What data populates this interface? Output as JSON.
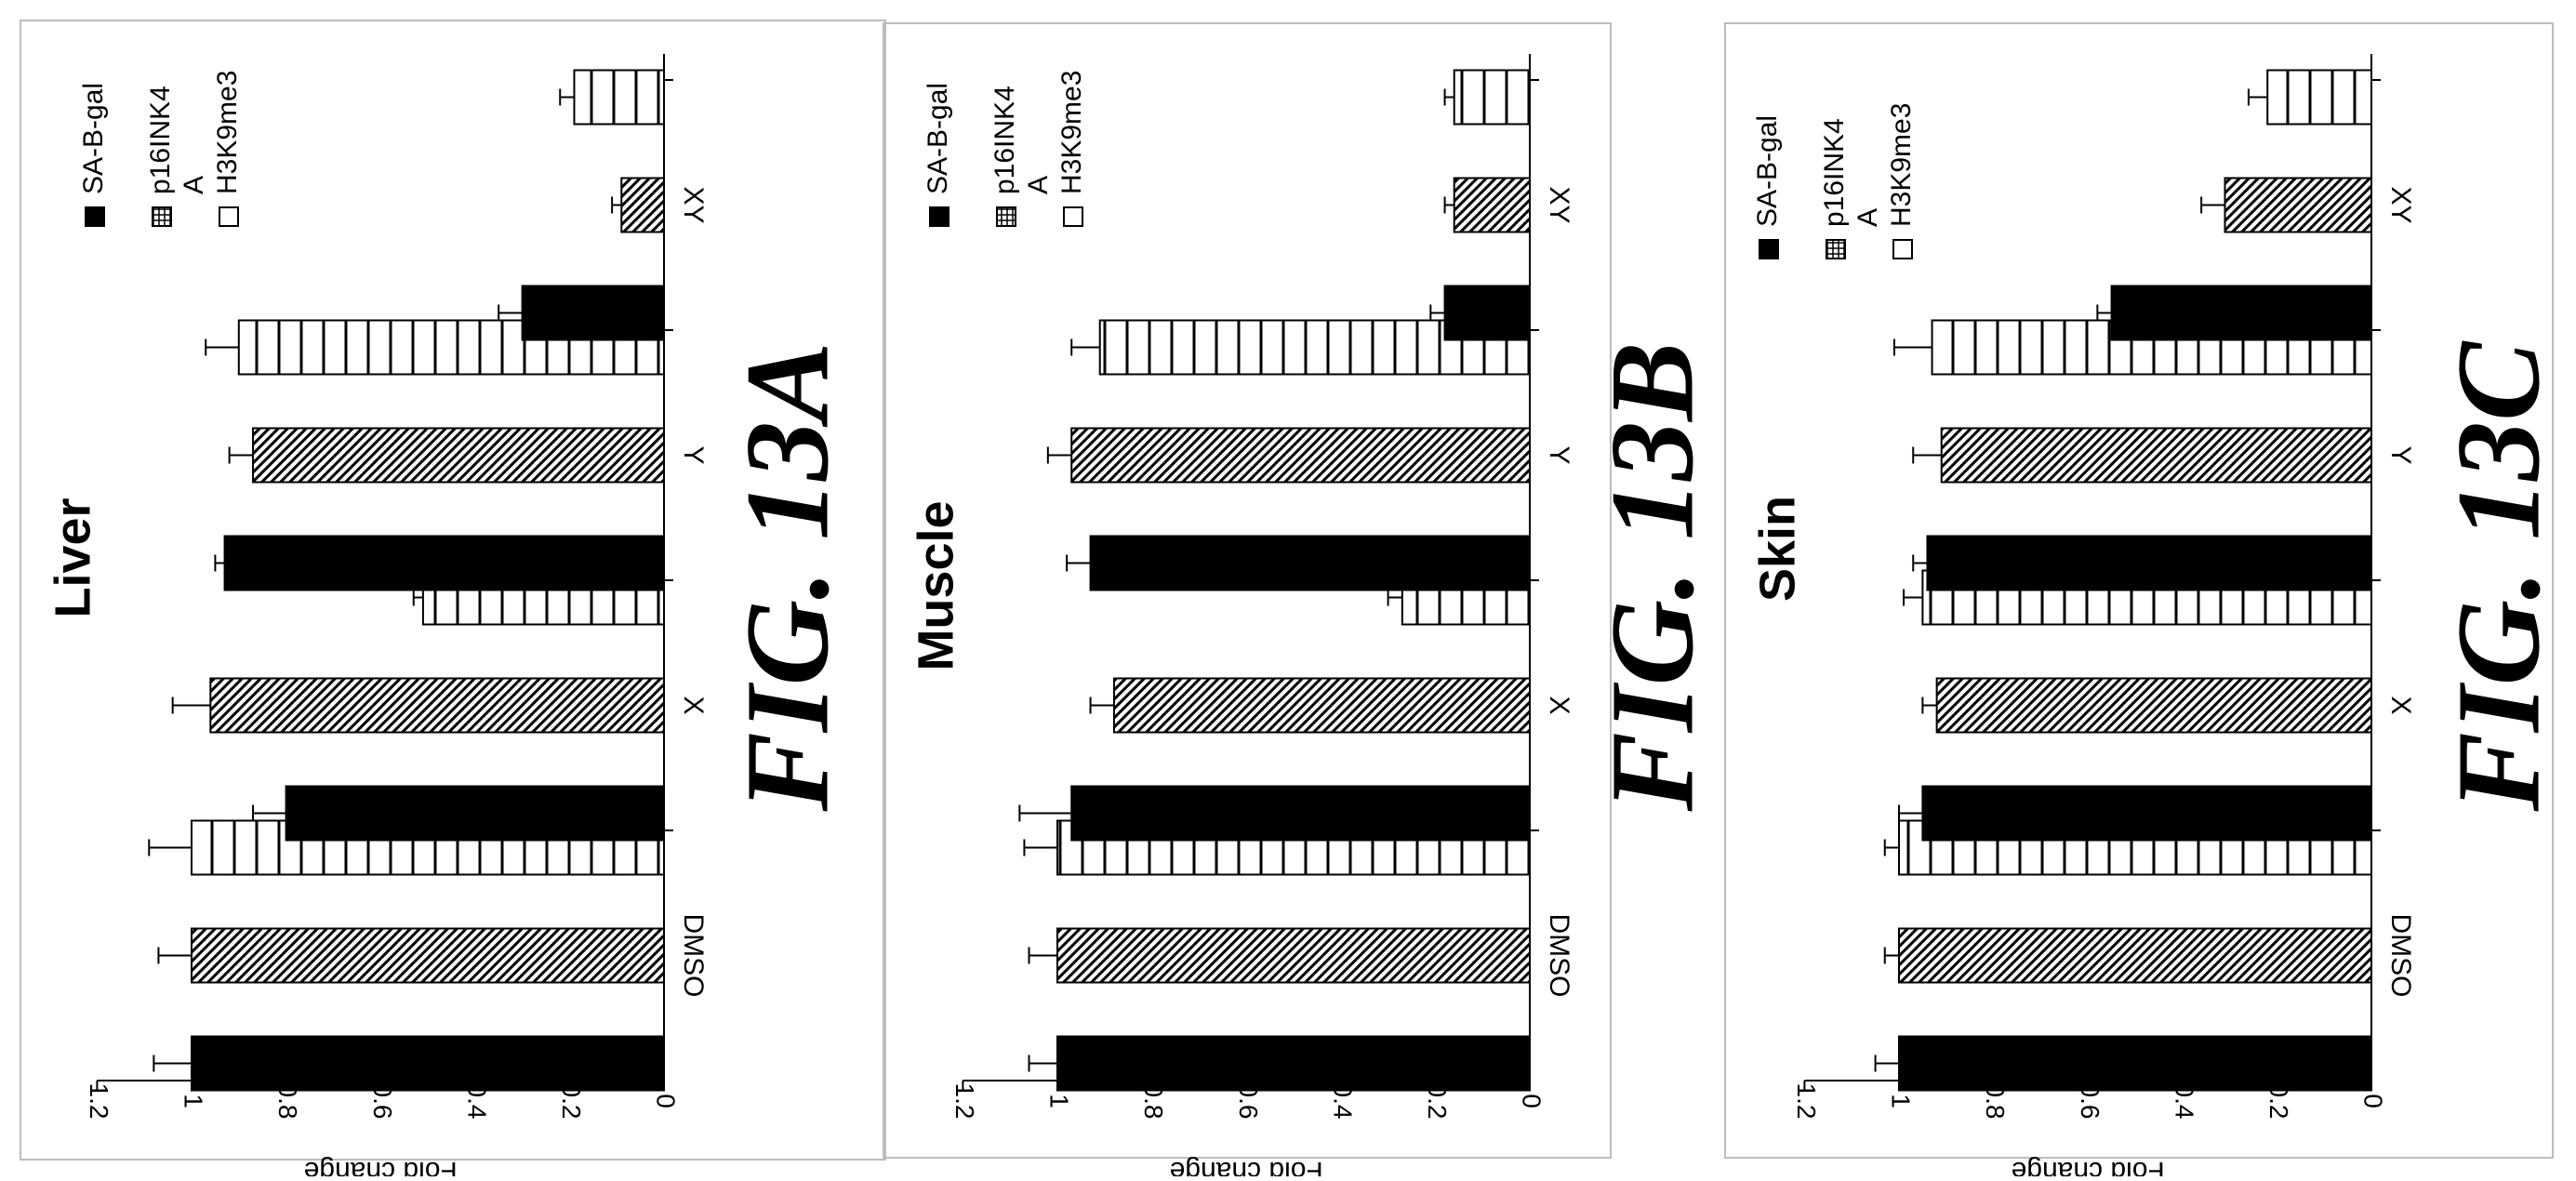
{
  "chart_data": [
    {
      "type": "bar",
      "title": "Liver",
      "figure_label": "FIG. 13A",
      "ylabel": "Fold change",
      "ylim": [
        0,
        1.2
      ],
      "ticks": [
        "0",
        "0.2",
        "0.4",
        "0.6",
        "0.8",
        "1",
        "1.2"
      ],
      "categories": [
        "DMSO",
        "X",
        "Y",
        "XY"
      ],
      "series": [
        {
          "name": "SA-B-gal",
          "values": [
            1.0,
            0.8,
            0.93,
            0.3
          ],
          "errors": [
            0.08,
            0.07,
            0.02,
            0.05
          ]
        },
        {
          "name": "p16INK4A",
          "values": [
            1.0,
            0.96,
            0.87,
            0.09
          ],
          "errors": [
            0.07,
            0.08,
            0.05,
            0.02
          ]
        },
        {
          "name": "H3K9me3",
          "values": [
            1.0,
            0.51,
            0.9,
            0.19
          ],
          "errors": [
            0.09,
            0.02,
            0.07,
            0.03
          ]
        }
      ]
    },
    {
      "type": "bar",
      "title": "Muscle",
      "figure_label": "FIG. 13B",
      "ylabel": "Fold change",
      "ylim": [
        0,
        1.2
      ],
      "ticks": [
        "0",
        "0.2",
        "0.4",
        "0.6",
        "0.8",
        "1",
        "1.2"
      ],
      "categories": [
        "DMSO",
        "X",
        "Y",
        "XY"
      ],
      "series": [
        {
          "name": "SA-B-gal",
          "values": [
            1.0,
            0.97,
            0.93,
            0.18
          ],
          "errors": [
            0.06,
            0.11,
            0.05,
            0.03
          ]
        },
        {
          "name": "p16INK4A",
          "values": [
            1.0,
            0.88,
            0.97,
            0.16
          ],
          "errors": [
            0.06,
            0.05,
            0.05,
            0.02
          ]
        },
        {
          "name": "H3K9me3",
          "values": [
            1.0,
            0.27,
            0.91,
            0.16
          ],
          "errors": [
            0.07,
            0.03,
            0.06,
            0.02
          ]
        }
      ]
    },
    {
      "type": "bar",
      "title": "Skin",
      "figure_label": "FIG. 13C",
      "ylabel": "Fold change",
      "ylim": [
        0,
        1.2
      ],
      "ticks": [
        "0",
        "0.2",
        "0.4",
        "0.6",
        "0.8",
        "1",
        "1.2"
      ],
      "categories": [
        "DMSO",
        "X",
        "Y",
        "XY"
      ],
      "series": [
        {
          "name": "SA-B-gal",
          "values": [
            1.0,
            0.95,
            0.94,
            0.55
          ],
          "errors": [
            0.05,
            0.05,
            0.03,
            0.03
          ]
        },
        {
          "name": "p16INK4A",
          "values": [
            1.0,
            0.92,
            0.91,
            0.31
          ],
          "errors": [
            0.03,
            0.03,
            0.06,
            0.05
          ]
        },
        {
          "name": "H3K9me3",
          "values": [
            1.0,
            0.95,
            0.93,
            0.22
          ],
          "errors": [
            0.03,
            0.04,
            0.08,
            0.04
          ]
        }
      ]
    }
  ],
  "legend": {
    "line1": "SA-B-gal",
    "line2": "p16INK4",
    "line2b": "A",
    "line3": "H3K9me3"
  }
}
